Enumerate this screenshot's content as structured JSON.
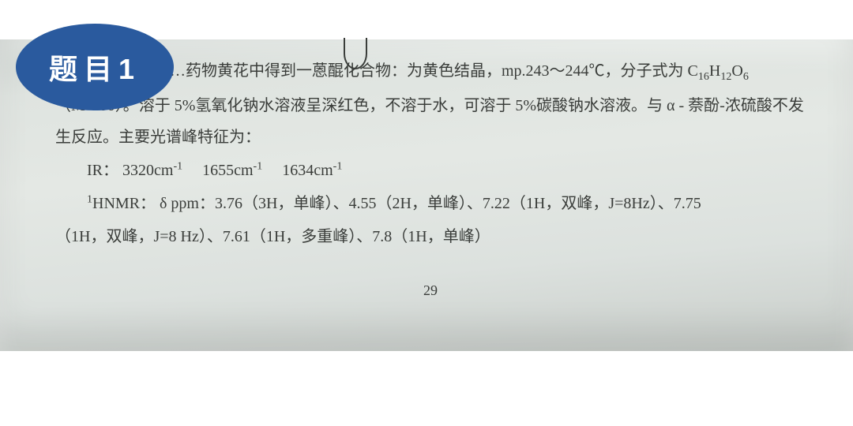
{
  "badge": {
    "label": "题目1",
    "bg_color": "#2a5a9e",
    "text_color": "#ffffff",
    "font_size": 36
  },
  "paper": {
    "bg_gradient_start": "#ced4d0",
    "bg_gradient_end": "#c8cdc9",
    "text_color": "#3a3d3a",
    "font_size": 20,
    "line_height": 2.0
  },
  "content": {
    "line1_a": "…药物黄花中得到一蒽醌化合物：为黄色结晶，mp.243～244℃，分子式为 C",
    "line1_sub1": "16",
    "line1_b": "H",
    "line1_sub2": "12",
    "line1_c": "O",
    "line1_sub3": "6",
    "line2_a": "（M",
    "line2_sup": "+",
    "line2_b": "300）。溶于 5%氢氧化钠水溶液呈深红色，不溶于水，可溶于 5%碳酸钠水溶液。与 α - 萘酚-浓硫酸不发生反应。主要光谱峰特征为：",
    "ir_label": "IR：",
    "ir_v1": "3320cm",
    "ir_v2": "1655cm",
    "ir_v3": "1634cm",
    "ir_sup": "-1",
    "nmr_sup1": "1",
    "nmr_label": "HNMR：  δ ppm：",
    "nmr_peaks_a": "3.76（3H，单峰）、4.55（2H，单峰）、7.22（1H，双峰，J=8Hz）、7.75",
    "nmr_peaks_b": "（1H，双峰，J=8 Hz）、7.61（1H，多重峰）、7.8（1H，单峰）",
    "page_number": "29"
  }
}
